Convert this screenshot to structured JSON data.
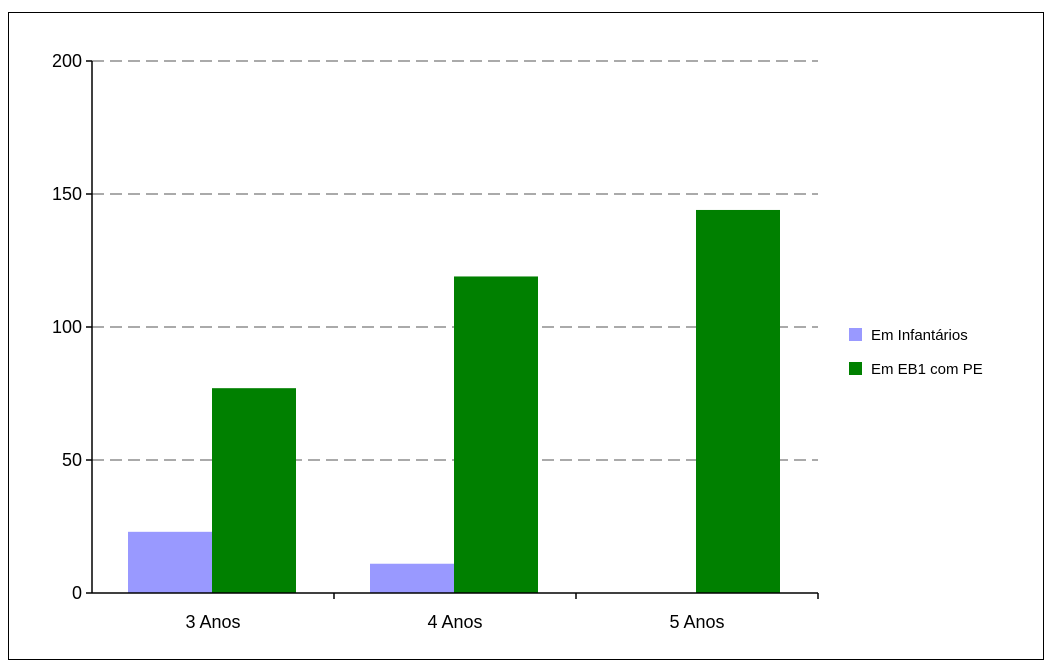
{
  "chart_data": {
    "type": "bar",
    "categories": [
      "3 Anos",
      "4 Anos",
      "5 Anos"
    ],
    "series": [
      {
        "name": "Em Infantários",
        "values": [
          23,
          11,
          0
        ],
        "color": "#9999ff"
      },
      {
        "name": "Em EB1 com PE",
        "values": [
          77,
          119,
          144
        ],
        "color": "#008000"
      }
    ],
    "ylim": [
      0,
      200
    ],
    "yticks": [
      "0",
      "50",
      "100",
      "150",
      "200"
    ],
    "grid": true,
    "legend": "right"
  }
}
